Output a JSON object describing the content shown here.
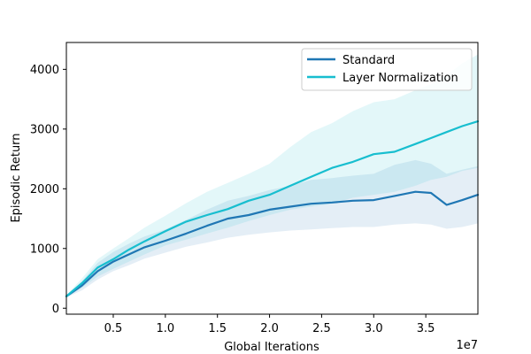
{
  "chart_data": {
    "type": "line",
    "title": "",
    "xlabel": "Global Iterations",
    "ylabel": "Episodic Return",
    "x_offset_label": "1e7",
    "xlim": [
      0.05,
      4.0
    ],
    "ylim": [
      -100,
      4450
    ],
    "xticks": [
      0.5,
      1.0,
      1.5,
      2.0,
      2.5,
      3.0,
      3.5
    ],
    "xtick_labels": [
      "0.5",
      "1.0",
      "1.5",
      "2.0",
      "2.5",
      "3.0",
      "3.5"
    ],
    "yticks": [
      0,
      1000,
      2000,
      3000,
      4000
    ],
    "ytick_labels": [
      "0",
      "1000",
      "2000",
      "3000",
      "4000"
    ],
    "grid": false,
    "legend_position": "top-right",
    "x": [
      0.05,
      0.2,
      0.35,
      0.5,
      0.65,
      0.8,
      1.0,
      1.2,
      1.4,
      1.6,
      1.8,
      2.0,
      2.2,
      2.4,
      2.6,
      2.8,
      3.0,
      3.2,
      3.4,
      3.55,
      3.7,
      3.85,
      4.0
    ],
    "series": [
      {
        "name": "Standard",
        "color": "#1f77b4",
        "values": [
          200,
          380,
          620,
          780,
          900,
          1020,
          1130,
          1250,
          1380,
          1500,
          1560,
          1650,
          1700,
          1750,
          1770,
          1800,
          1810,
          1880,
          1950,
          1930,
          1730,
          1810,
          1900
        ],
        "lower": [
          180,
          300,
          480,
          620,
          720,
          830,
          930,
          1030,
          1100,
          1180,
          1230,
          1270,
          1300,
          1320,
          1340,
          1360,
          1360,
          1400,
          1420,
          1400,
          1330,
          1360,
          1420
        ],
        "upper": [
          220,
          450,
          760,
          940,
          1080,
          1200,
          1320,
          1480,
          1650,
          1800,
          1880,
          1980,
          2050,
          2150,
          2180,
          2220,
          2250,
          2400,
          2480,
          2420,
          2250,
          2320,
          2380
        ]
      },
      {
        "name": "Layer Normalization",
        "color": "#17becf",
        "values": [
          200,
          420,
          680,
          820,
          980,
          1120,
          1290,
          1450,
          1560,
          1660,
          1800,
          1900,
          2050,
          2200,
          2350,
          2450,
          2580,
          2620,
          2750,
          2850,
          2950,
          3050,
          3130
        ],
        "lower": [
          180,
          340,
          530,
          660,
          780,
          900,
          1050,
          1150,
          1250,
          1350,
          1460,
          1560,
          1650,
          1700,
          1750,
          1850,
          1900,
          1950,
          2050,
          2150,
          2200,
          2300,
          2350
        ],
        "upper": [
          220,
          500,
          820,
          1000,
          1170,
          1350,
          1550,
          1760,
          1950,
          2100,
          2250,
          2420,
          2700,
          2950,
          3100,
          3300,
          3450,
          3500,
          3650,
          3750,
          3900,
          4100,
          4250
        ]
      }
    ]
  }
}
